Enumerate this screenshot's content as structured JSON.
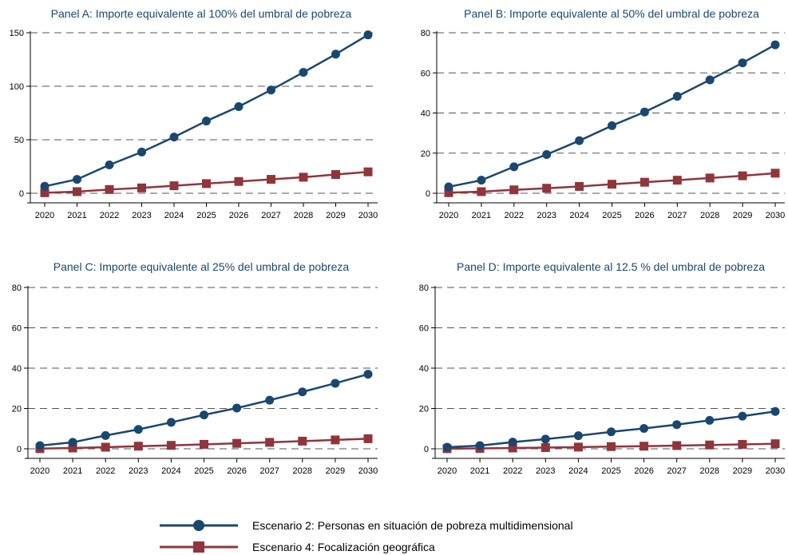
{
  "chart_data": [
    {
      "type": "line",
      "title": "Panel A: Importe equivalente al 100% del umbral de pobreza",
      "categories": [
        "2020",
        "2021",
        "2022",
        "2023",
        "2024",
        "2025",
        "2026",
        "2027",
        "2028",
        "2029",
        "2030"
      ],
      "ylim": [
        0,
        150
      ],
      "yticks": [
        0,
        50,
        100,
        150
      ],
      "grid": true,
      "series": [
        {
          "name": "Escenario 2: Personas en situación de pobreza multidimensional",
          "values": [
            6.5,
            13,
            26.5,
            38.5,
            52.5,
            67.5,
            81,
            96.5,
            113,
            130,
            148
          ]
        },
        {
          "name": "Escenario 4: Focalización geográfica",
          "values": [
            0.5,
            1.5,
            3.5,
            5,
            7,
            9,
            11,
            13,
            15,
            17.5,
            20
          ]
        }
      ]
    },
    {
      "type": "line",
      "title": "Panel B: Importe equivalente al 50% del umbral de pobreza",
      "categories": [
        "2020",
        "2021",
        "2022",
        "2023",
        "2024",
        "2025",
        "2026",
        "2027",
        "2028",
        "2029",
        "2030"
      ],
      "ylim": [
        0,
        80
      ],
      "yticks": [
        0,
        20,
        40,
        60,
        80
      ],
      "grid": true,
      "series": [
        {
          "name": "Escenario 2: Personas en situación de pobreza multidimensional",
          "values": [
            3.2,
            6.5,
            13.2,
            19.3,
            26.2,
            33.7,
            40.5,
            48.3,
            56.5,
            65,
            74
          ]
        },
        {
          "name": "Escenario 4: Focalización geográfica",
          "values": [
            0.3,
            0.8,
            1.7,
            2.5,
            3.4,
            4.5,
            5.5,
            6.5,
            7.6,
            8.7,
            10
          ]
        }
      ]
    },
    {
      "type": "line",
      "title": "Panel C: Importe equivalente al 25% del umbral de pobreza",
      "categories": [
        "2020",
        "2021",
        "2022",
        "2023",
        "2024",
        "2025",
        "2026",
        "2027",
        "2028",
        "2029",
        "2030"
      ],
      "ylim": [
        0,
        80
      ],
      "yticks": [
        0,
        20,
        40,
        60,
        80
      ],
      "grid": true,
      "series": [
        {
          "name": "Escenario 2: Personas en situación de pobreza multidimensional",
          "values": [
            1.6,
            3.2,
            6.6,
            9.6,
            13.1,
            16.8,
            20.2,
            24.1,
            28.2,
            32.5,
            37
          ]
        },
        {
          "name": "Escenario 4: Focalización geográfica",
          "values": [
            0.1,
            0.4,
            0.8,
            1.3,
            1.7,
            2.2,
            2.7,
            3.2,
            3.8,
            4.4,
            5
          ]
        }
      ]
    },
    {
      "type": "line",
      "title": "Panel D: Importe equivalente al 12.5 % del umbral de pobreza",
      "categories": [
        "2020",
        "2021",
        "2022",
        "2023",
        "2024",
        "2025",
        "2026",
        "2027",
        "2028",
        "2029",
        "2030"
      ],
      "ylim": [
        0,
        80
      ],
      "yticks": [
        0,
        20,
        40,
        60,
        80
      ],
      "grid": true,
      "series": [
        {
          "name": "Escenario 2: Personas en situación de pobreza multidimensional",
          "values": [
            0.8,
            1.6,
            3.3,
            4.8,
            6.5,
            8.4,
            10.1,
            12,
            14.1,
            16.2,
            18.5
          ]
        },
        {
          "name": "Escenario 4: Focalización geográfica",
          "values": [
            0.05,
            0.2,
            0.4,
            0.6,
            0.85,
            1.1,
            1.3,
            1.6,
            1.9,
            2.2,
            2.5
          ]
        }
      ]
    }
  ],
  "legend": {
    "placement": "bottom-center",
    "items": [
      {
        "label": "Escenario 2: Personas en situación de pobreza multidimensional",
        "color": "#1a476f",
        "marker": "circle"
      },
      {
        "label": "Escenario 4: Focalización geográfica",
        "color": "#90353b",
        "marker": "square"
      }
    ]
  },
  "colors": {
    "series_1": "#1a476f",
    "series_2": "#90353b",
    "grid": "#555555",
    "axis": "#000000",
    "title": "#1a476f"
  }
}
